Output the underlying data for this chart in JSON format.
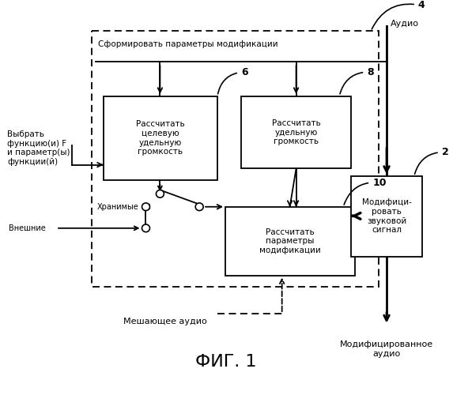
{
  "title": "ФИГ. 1",
  "bg_color": "#ffffff",
  "outer_box_label": "Сформировать параметры модификации",
  "box6_label": "Рассчитать\nцелевую\nудельную\nгромкость",
  "box8_label": "Рассчитать\nудельную\nгромкость",
  "box10_label": "Рассчитать\nпараметры\nмодификации",
  "box2_label": "Модифици-\nровать\nзвуковой\nсигнал",
  "select_label": "Выбрать\nфункцию(и) F\nи параметр(ы)\nфункции(й)",
  "audio_label": "Аудио",
  "stored_label": "Хранимые",
  "external_label": "Внешние",
  "masking_label": "Мешающее аудио",
  "mod_audio_label": "Модифицированное\nаудио"
}
